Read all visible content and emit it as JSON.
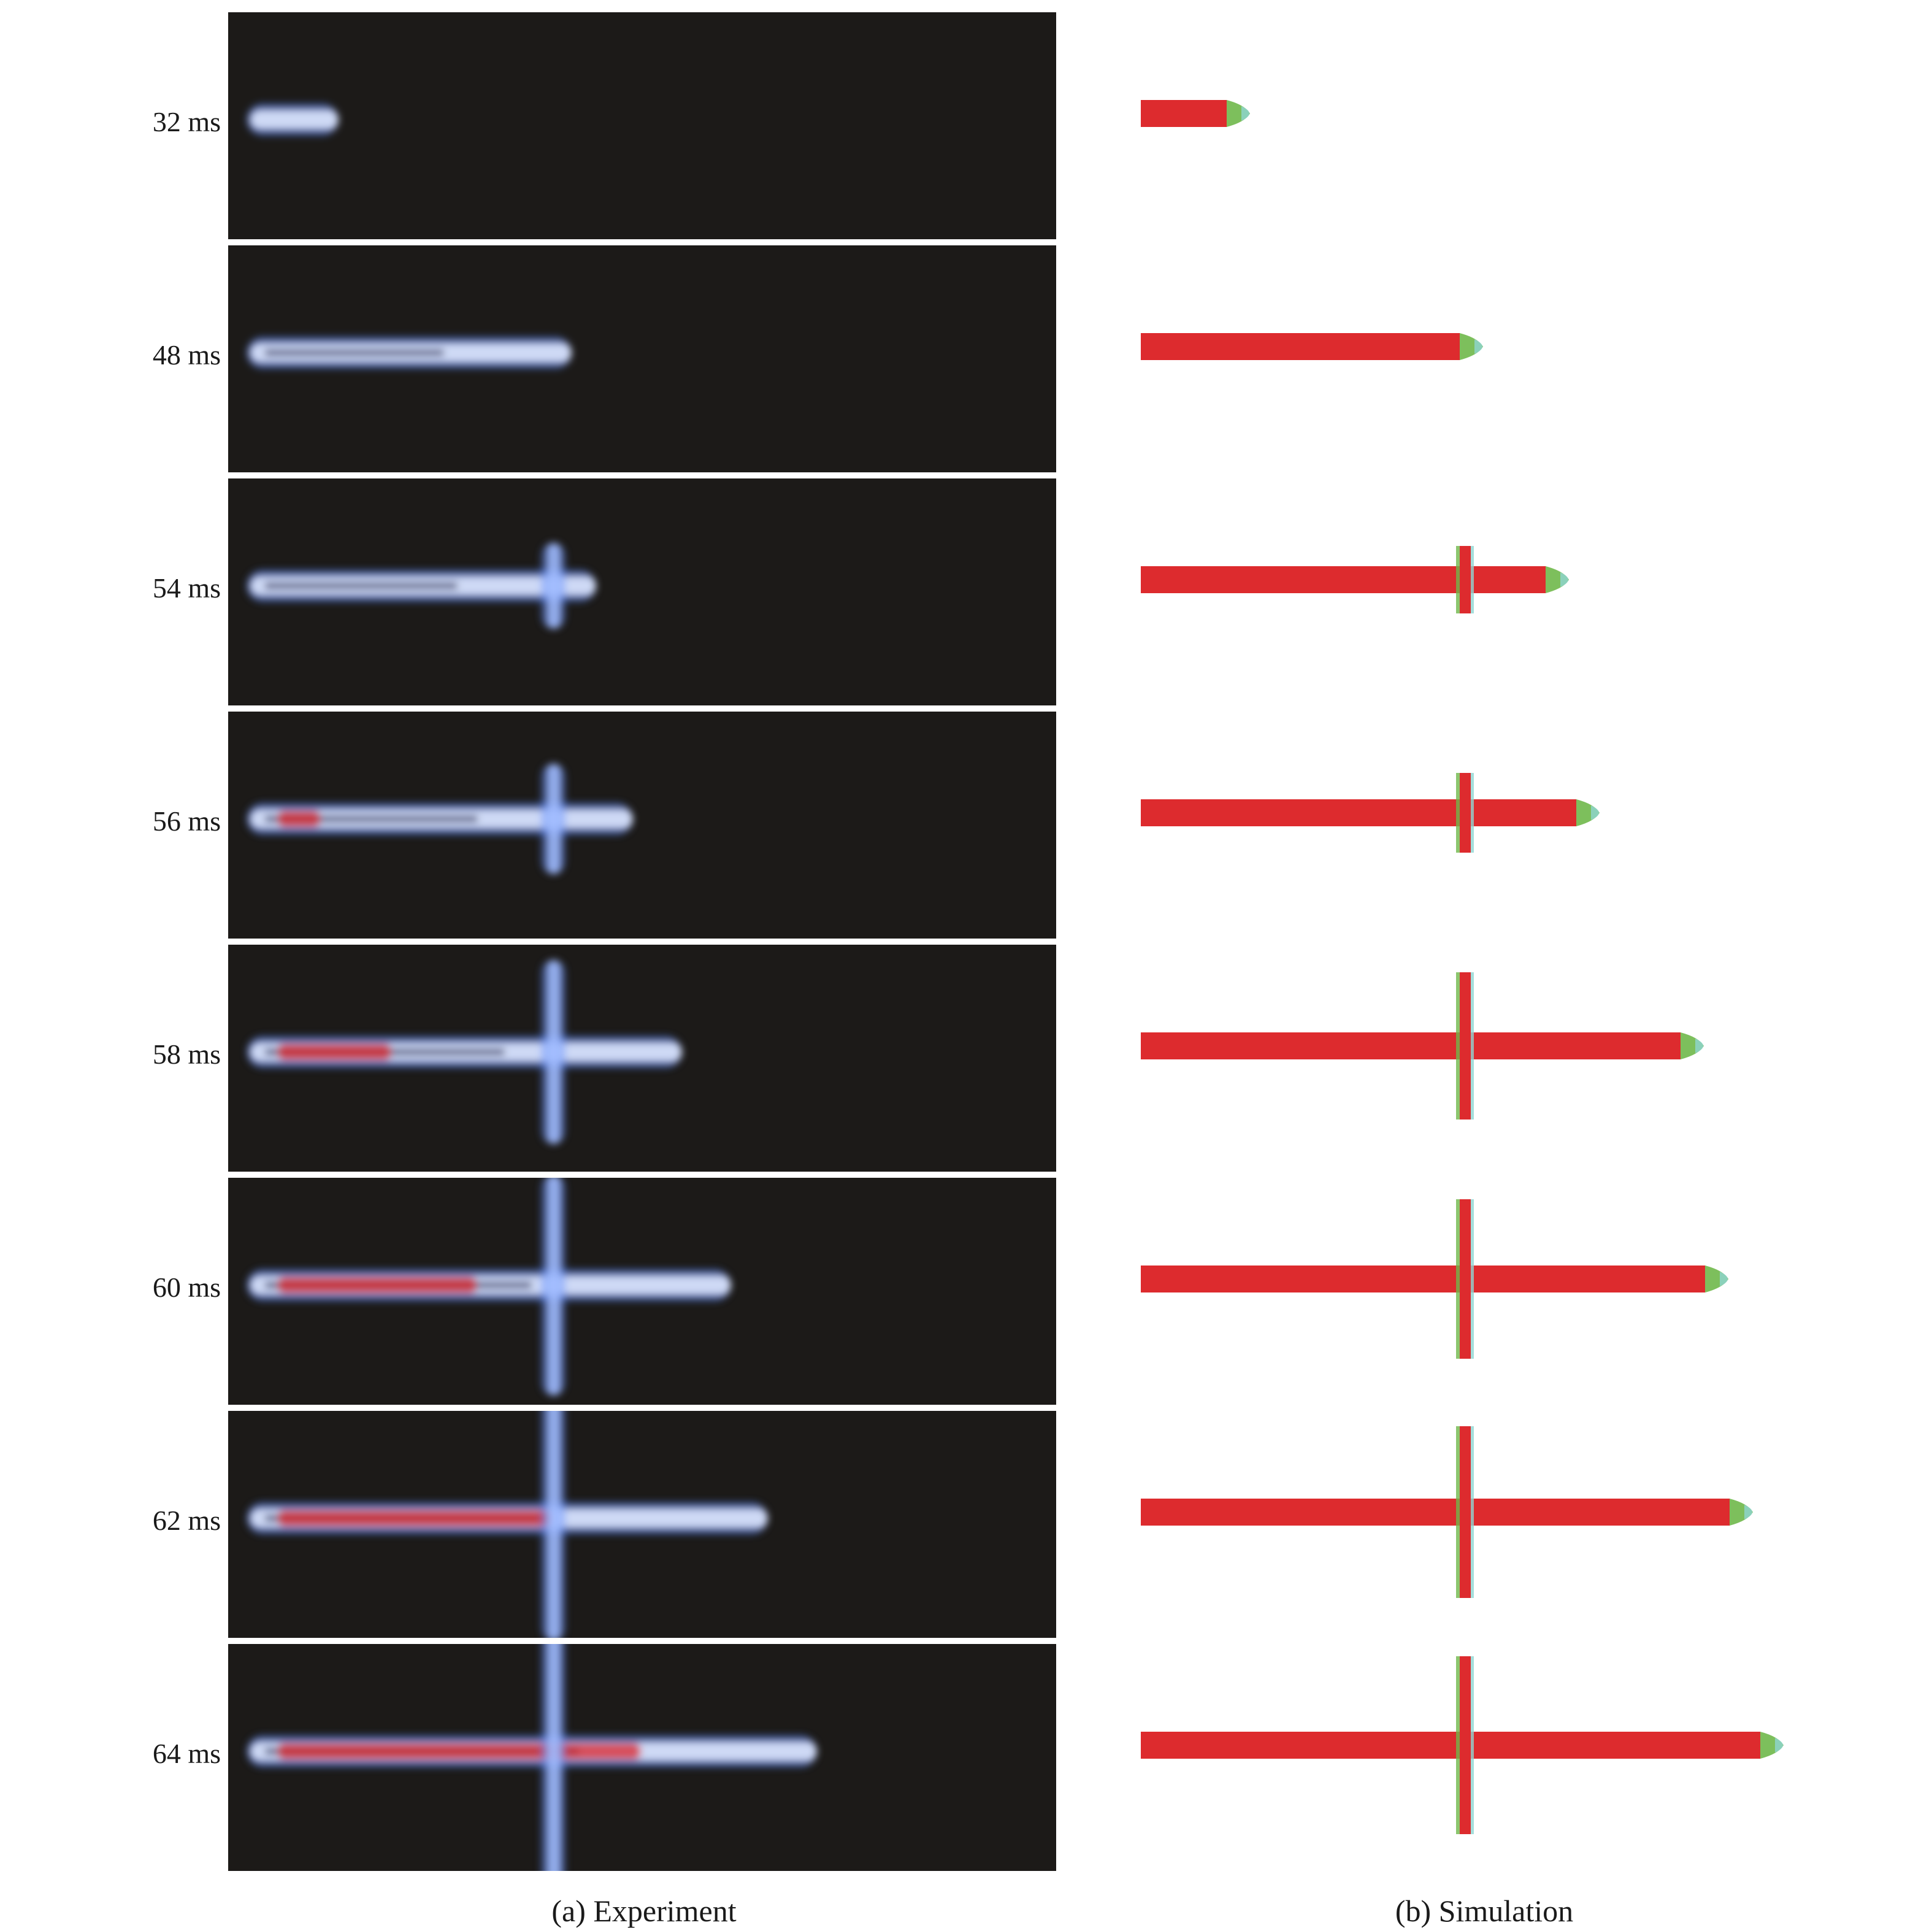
{
  "frames": [
    {
      "time": "32 ms"
    },
    {
      "time": "48 ms"
    },
    {
      "time": "54 ms"
    },
    {
      "time": "56 ms"
    },
    {
      "time": "58 ms"
    },
    {
      "time": "60 ms"
    },
    {
      "time": "62 ms"
    },
    {
      "time": "64 ms"
    }
  ],
  "captions": {
    "experiment": "(a) Experiment",
    "simulation": "(b) Simulation"
  },
  "colors": {
    "panel_background": "#1c1a18",
    "jet_core_experiment": "#dfe8ff",
    "jet_glow_experiment": "#5a8cff",
    "jet_red_experiment": "#d8222a",
    "simulation_fill": "#dd2b2e",
    "simulation_edge_green": "#6fb84a",
    "simulation_edge_cyan": "#8fd6d2"
  }
}
